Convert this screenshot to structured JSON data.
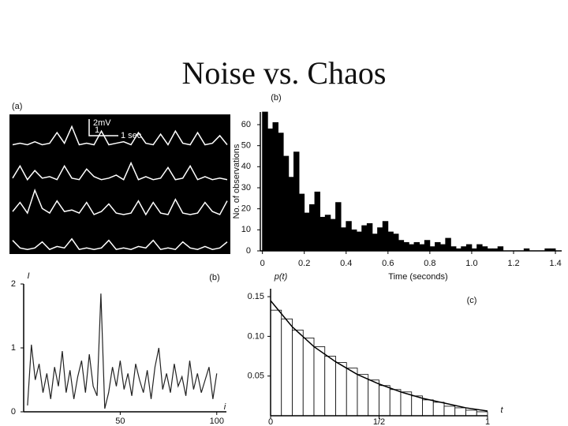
{
  "title": "Noise vs. Chaos",
  "chart_data": [
    {
      "type": "traces",
      "panel_label": "(a)",
      "scale_labels": [
        "2mV",
        "1",
        "1 sec"
      ],
      "ylim": [
        -0.3,
        2
      ],
      "series": [
        {
          "color": "#ffffff",
          "values": [
            0,
            0.1,
            0,
            0.2,
            0,
            0.1,
            0.8,
            0.1,
            1.2,
            0,
            0.1,
            0,
            0.9,
            0,
            0.1,
            0.2,
            0,
            0.8,
            0.1,
            0,
            0.7,
            0,
            0.9,
            0.1,
            0,
            0.8,
            0,
            0.1,
            0.6,
            0
          ]
        },
        {
          "color": "#ffffff",
          "values": [
            0.1,
            0.9,
            0,
            0.6,
            0.1,
            0.2,
            0,
            0.9,
            0.1,
            0,
            0.7,
            0.2,
            0,
            0.1,
            0.3,
            0,
            1.1,
            0,
            0.2,
            0,
            0.1,
            0.8,
            0,
            0.1,
            0.9,
            0,
            0.2,
            0,
            0.1,
            0
          ]
        },
        {
          "color": "#ffffff",
          "values": [
            0.2,
            0.8,
            0.1,
            1.6,
            0.4,
            0.1,
            0.9,
            0.2,
            0.3,
            0.1,
            0.8,
            0,
            0.2,
            0.7,
            0.1,
            0,
            0.1,
            0.9,
            0,
            0.8,
            0.1,
            0,
            1,
            0.1,
            0,
            0.1,
            0.8,
            0.2,
            0,
            0.9
          ]
        },
        {
          "color": "#ffffff",
          "values": [
            0.6,
            0.1,
            0,
            0.1,
            0.5,
            0,
            0.2,
            0.1,
            0.7,
            0,
            0.1,
            0,
            0.1,
            0.6,
            0,
            0.1,
            0,
            0.2,
            0.1,
            0.6,
            0,
            0.1,
            0,
            0.5,
            0.1,
            0,
            0.2,
            0,
            0.1,
            0.5
          ]
        }
      ]
    },
    {
      "type": "histogram",
      "panel_label": "(b)",
      "ylabel": "No. of observations",
      "xlabel": "Time (seconds)",
      "color": "#000000",
      "xlim": [
        -0.01,
        1.43
      ],
      "ylim": [
        0,
        66
      ],
      "xticks": [
        0,
        0.2,
        0.4,
        0.6,
        0.8,
        {
          "value": 1,
          "label": "1.0"
        },
        1.2,
        1.4
      ],
      "yticks": [
        0,
        10,
        20,
        30,
        40,
        50,
        60
      ],
      "bins": [
        0,
        0.025,
        0.05,
        0.075,
        0.1,
        0.125,
        0.15,
        0.175,
        0.2,
        0.225,
        0.25,
        0.275,
        0.3,
        0.325,
        0.35,
        0.375,
        0.4,
        0.425,
        0.45,
        0.475,
        0.5,
        0.525,
        0.55,
        0.575,
        0.6,
        0.625,
        0.65,
        0.675,
        0.7,
        0.725,
        0.75,
        0.775,
        0.8,
        0.825,
        0.85,
        0.875,
        0.9,
        0.925,
        0.95,
        0.975,
        1,
        1.025,
        1.05,
        1.075,
        1.1,
        1.125,
        1.15,
        1.175,
        1.2,
        1.225,
        1.25,
        1.275,
        1.3,
        1.325,
        1.35,
        1.375,
        1.4
      ],
      "values": [
        66,
        58,
        61,
        56,
        45,
        35,
        47,
        27,
        18,
        22,
        28,
        16,
        17,
        15,
        23,
        11,
        14,
        10,
        9,
        12,
        13,
        8,
        11,
        14,
        9,
        8,
        5,
        4,
        3,
        4,
        3,
        5,
        2,
        4,
        3,
        6,
        2,
        1,
        2,
        3,
        1,
        3,
        2,
        1,
        1,
        2,
        0,
        0,
        0,
        0,
        1,
        0,
        0,
        0,
        1,
        1
      ]
    },
    {
      "type": "line",
      "panel_label": "(b)",
      "ylabel": "I",
      "xlabel": "i",
      "color": "#222222",
      "xlim": [
        0,
        105
      ],
      "ylim": [
        0,
        2
      ],
      "xticks": [
        50,
        100
      ],
      "yticks": [
        0,
        1,
        2
      ],
      "x": [
        2,
        4,
        6,
        8,
        10,
        12,
        14,
        16,
        18,
        20,
        22,
        24,
        26,
        28,
        30,
        32,
        34,
        36,
        38,
        40,
        42,
        44,
        46,
        48,
        50,
        52,
        54,
        56,
        58,
        60,
        62,
        64,
        66,
        68,
        70,
        72,
        74,
        76,
        78,
        80,
        82,
        84,
        86,
        88,
        90,
        92,
        94,
        96,
        98,
        100
      ],
      "values": [
        0.1,
        1.05,
        0.5,
        0.75,
        0.3,
        0.6,
        0.2,
        0.7,
        0.4,
        0.95,
        0.3,
        0.65,
        0.2,
        0.55,
        0.8,
        0.3,
        0.9,
        0.4,
        0.25,
        1.85,
        0.05,
        0.3,
        0.7,
        0.4,
        0.8,
        0.35,
        0.6,
        0.25,
        0.75,
        0.5,
        0.3,
        0.65,
        0.2,
        0.7,
        1.0,
        0.35,
        0.6,
        0.3,
        0.75,
        0.4,
        0.55,
        0.25,
        0.8,
        0.35,
        0.6,
        0.3,
        0.5,
        0.7,
        0.2,
        0.6
      ]
    },
    {
      "type": "histogram",
      "panel_label": "(c)",
      "ylabel": "p(t)",
      "xlabel": "t",
      "color": "#ffffff",
      "xlim": [
        0,
        1
      ],
      "ylim": [
        0,
        0.16
      ],
      "xticks": [
        0,
        {
          "value": 0.5,
          "label": "1/2"
        },
        1
      ],
      "yticks": [
        0.05,
        {
          "value": 0.1,
          "label": "0.10"
        },
        0.15
      ],
      "bins": [
        0,
        0.05,
        0.1,
        0.15,
        0.2,
        0.25,
        0.3,
        0.35,
        0.4,
        0.45,
        0.5,
        0.55,
        0.6,
        0.65,
        0.7,
        0.75,
        0.8,
        0.85,
        0.9,
        0.95,
        1
      ],
      "values": [
        0.133,
        0.122,
        0.108,
        0.098,
        0.087,
        0.075,
        0.067,
        0.06,
        0.052,
        0.045,
        0.038,
        0.033,
        0.03,
        0.025,
        0.02,
        0.017,
        0.012,
        0.01,
        0.007,
        0.005
      ],
      "curve": {
        "x": [
          0,
          0.1,
          0.2,
          0.3,
          0.4,
          0.5,
          0.6,
          0.7,
          0.8,
          0.9,
          1
        ],
        "values": [
          0.145,
          0.112,
          0.087,
          0.068,
          0.052,
          0.04,
          0.03,
          0.022,
          0.016,
          0.01,
          0.006
        ]
      }
    }
  ]
}
